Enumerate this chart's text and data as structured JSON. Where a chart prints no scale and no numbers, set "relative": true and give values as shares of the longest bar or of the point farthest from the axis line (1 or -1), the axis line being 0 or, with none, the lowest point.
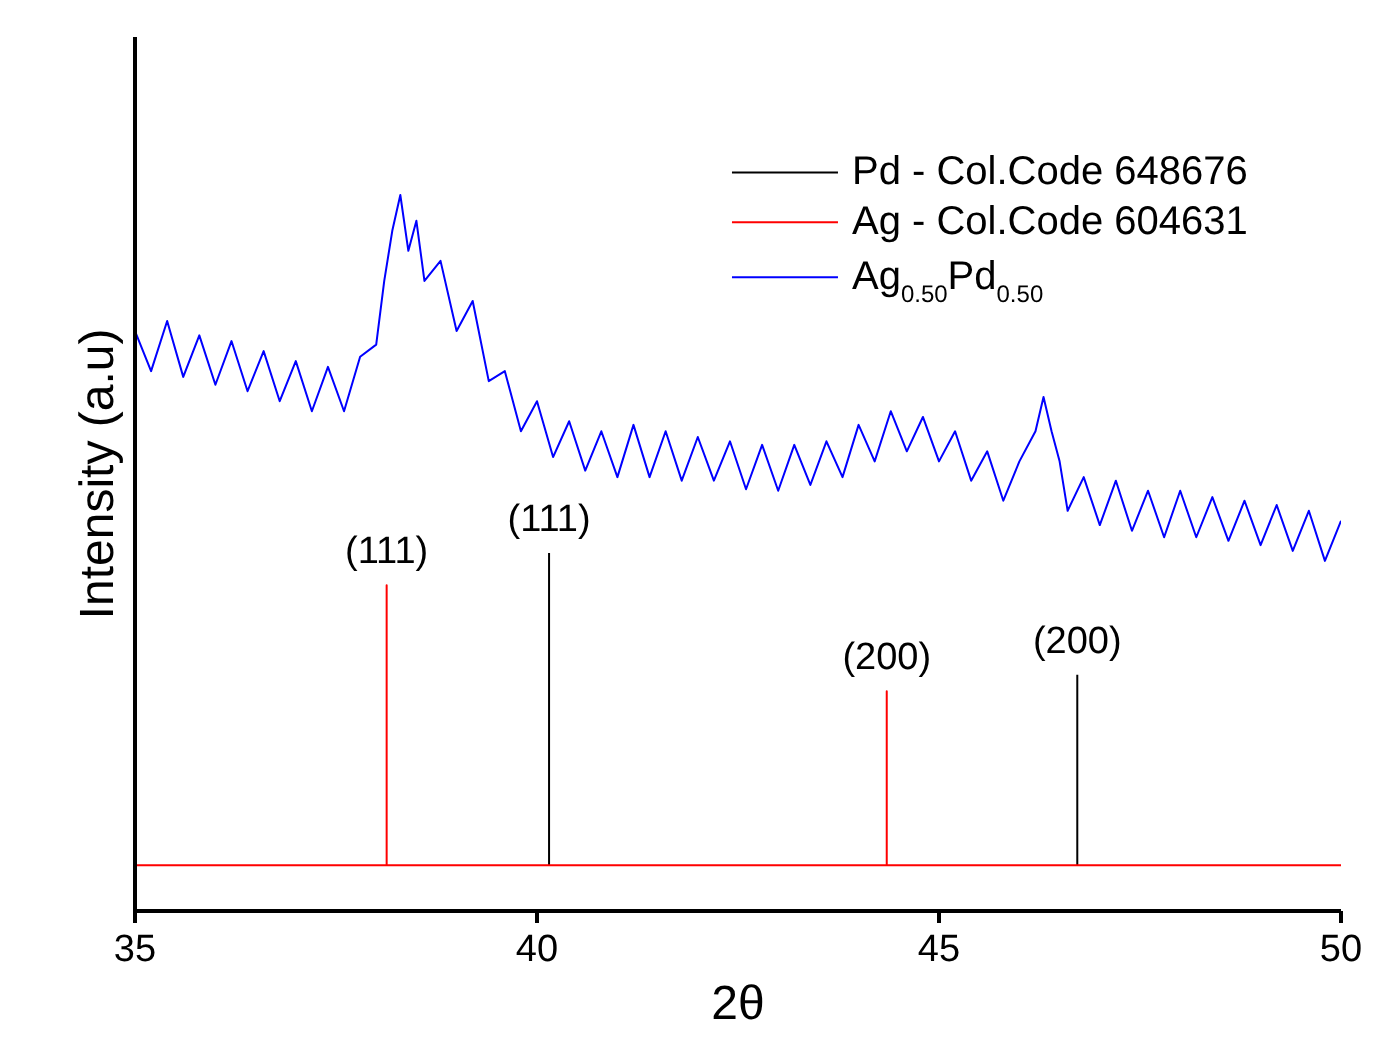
{
  "chart_data": {
    "type": "line",
    "relative": true,
    "xlabel": "2θ",
    "ylabel": "Intensity (a.u)",
    "xlim": [
      35,
      50
    ],
    "xticks": [
      35,
      40,
      45,
      50
    ],
    "legend": "top right",
    "grid": false,
    "marker": "none",
    "line_style": "solid",
    "series": [
      {
        "name": "Pd - Col.Code 648676",
        "color": "#000000",
        "x": [
          40.15,
          40.15,
          43.4,
          46.72,
          46.72
        ],
        "values": [
          0.064,
          0.5,
          null,
          0.064,
          0.33
        ]
      },
      {
        "name": "Ag - Col.Code 604631",
        "color": "#ff0000",
        "x": [
          35,
          38.13,
          38.13,
          38.13,
          44.35,
          44.35,
          44.35,
          50
        ],
        "values": [
          0.064,
          0.064,
          0.455,
          0.064,
          0.064,
          0.307,
          0.064,
          0.064
        ]
      },
      {
        "name": "Ag$_{0.50}$Pd$_{0.50}$",
        "color": "#0000ff",
        "x": [
          35.0,
          35.2,
          35.4,
          35.6,
          35.8,
          36.0,
          36.2,
          36.4,
          36.6,
          36.8,
          37.0,
          37.2,
          37.4,
          37.6,
          37.8,
          38.0,
          38.1,
          38.2,
          38.3,
          38.4,
          38.5,
          38.6,
          38.8,
          39.0,
          39.2,
          39.4,
          39.6,
          39.8,
          40.0,
          40.2,
          40.4,
          40.6,
          40.8,
          41.0,
          41.2,
          41.4,
          41.6,
          41.8,
          42.0,
          42.2,
          42.4,
          42.6,
          42.8,
          43.0,
          43.2,
          43.4,
          43.6,
          43.8,
          44.0,
          44.2,
          44.4,
          44.6,
          44.8,
          45.0,
          45.2,
          45.4,
          45.6,
          45.8,
          46.0,
          46.2,
          46.3,
          46.4,
          46.5,
          46.6,
          46.8,
          47.0,
          47.2,
          47.4,
          47.6,
          47.8,
          48.0,
          48.2,
          48.4,
          48.6,
          48.8,
          49.0,
          49.2,
          49.4,
          49.6,
          49.8,
          50.0
        ],
        "values": [
          0.81,
          0.754,
          0.824,
          0.746,
          0.804,
          0.735,
          0.796,
          0.726,
          0.782,
          0.712,
          0.768,
          0.698,
          0.76,
          0.698,
          0.774,
          0.791,
          0.88,
          0.95,
          1.0,
          0.922,
          0.964,
          0.88,
          0.908,
          0.81,
          0.852,
          0.74,
          0.754,
          0.67,
          0.712,
          0.634,
          0.684,
          0.615,
          0.67,
          0.606,
          0.679,
          0.606,
          0.67,
          0.601,
          0.662,
          0.601,
          0.656,
          0.589,
          0.651,
          0.587,
          0.651,
          0.595,
          0.656,
          0.606,
          0.679,
          0.628,
          0.698,
          0.642,
          0.69,
          0.628,
          0.67,
          0.601,
          0.642,
          0.573,
          0.628,
          0.67,
          0.718,
          0.67,
          0.628,
          0.559,
          0.606,
          0.539,
          0.601,
          0.531,
          0.587,
          0.522,
          0.587,
          0.522,
          0.578,
          0.517,
          0.573,
          0.511,
          0.567,
          0.503,
          0.559,
          0.489,
          0.545
        ]
      }
    ],
    "annotations": [
      {
        "text": "(111)",
        "x": 38.13,
        "y": 0.455
      },
      {
        "text": "(111)",
        "x": 40.15,
        "y": 0.5
      },
      {
        "text": "(200)",
        "x": 44.35,
        "y": 0.307
      },
      {
        "text": "(200)",
        "x": 46.72,
        "y": 0.33
      }
    ]
  }
}
